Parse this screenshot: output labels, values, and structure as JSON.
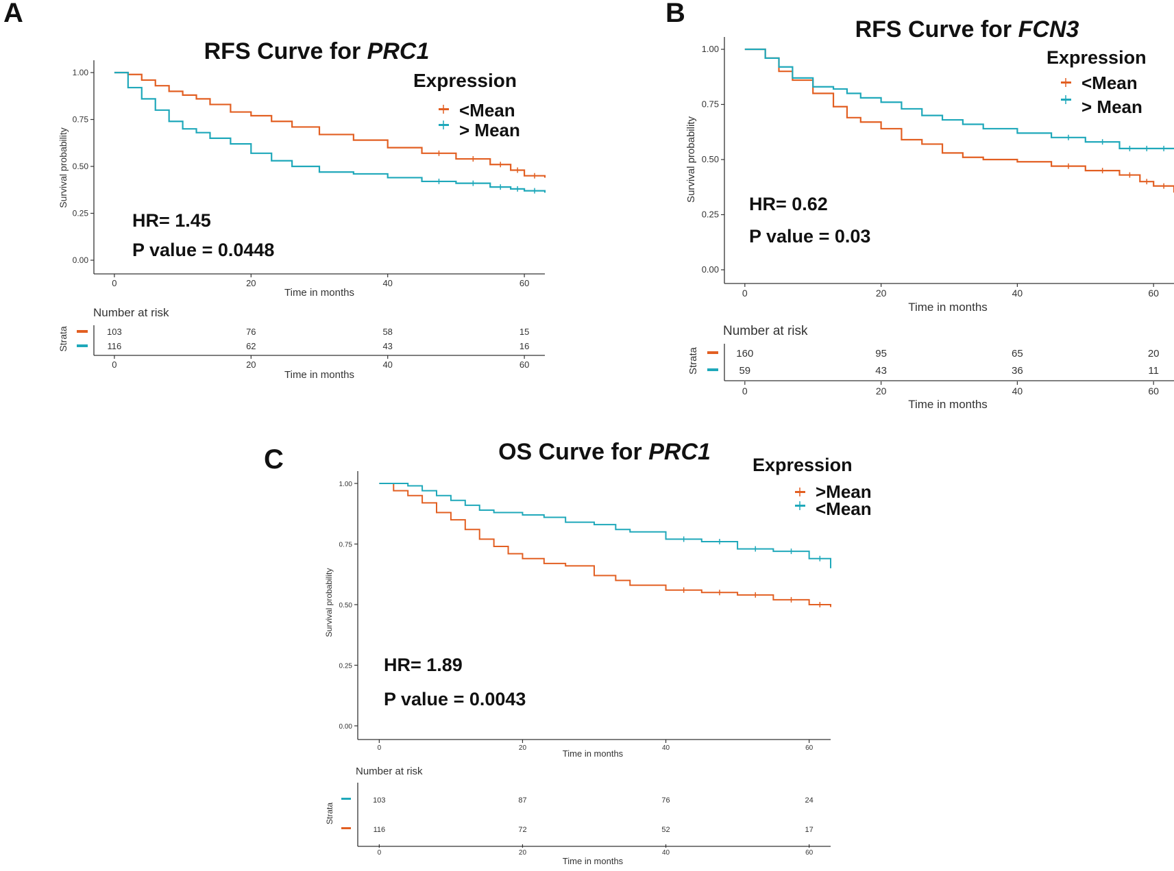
{
  "colors": {
    "orange": "#E25F22",
    "teal": "#1FA8BA",
    "axis": "#333333"
  },
  "chart_data": [
    {
      "type": "line",
      "panel_label": "A",
      "title_prefix": "RFS Curve for ",
      "title_gene": "PRC1",
      "xlabel": "Time in months",
      "ylabel": "Survival probability",
      "xlim": [
        -3,
        63
      ],
      "ylim": [
        0,
        1
      ],
      "x_ticks": [
        "0",
        "20",
        "40",
        "60"
      ],
      "y_ticks": [
        "0.00",
        "0.25",
        "0.50",
        "0.75",
        "1.00"
      ],
      "legend_title": "Expression",
      "hr_text": "HR= 1.45",
      "p_text": "P value = 0.0448",
      "risk_title": "Number at risk",
      "strata_label": "Strata",
      "series": [
        {
          "name": "<Mean",
          "legend_label": "<Mean",
          "color": "orange",
          "x": [
            0,
            2,
            4,
            6,
            8,
            10,
            12,
            14,
            17,
            20,
            23,
            26,
            30,
            35,
            40,
            45,
            50,
            55,
            58,
            60,
            63
          ],
          "y": [
            1.0,
            0.99,
            0.96,
            0.93,
            0.9,
            0.88,
            0.86,
            0.83,
            0.79,
            0.77,
            0.74,
            0.71,
            0.67,
            0.64,
            0.6,
            0.57,
            0.54,
            0.51,
            0.48,
            0.45,
            0.44
          ],
          "risk": [
            "103",
            "76",
            "58",
            "15"
          ]
        },
        {
          "name": "> Mean",
          "legend_label": "> Mean",
          "color": "teal",
          "x": [
            0,
            2,
            4,
            6,
            8,
            10,
            12,
            14,
            17,
            20,
            23,
            26,
            30,
            35,
            40,
            45,
            50,
            55,
            58,
            60,
            63
          ],
          "y": [
            1.0,
            0.92,
            0.86,
            0.8,
            0.74,
            0.7,
            0.68,
            0.65,
            0.62,
            0.57,
            0.53,
            0.5,
            0.47,
            0.46,
            0.44,
            0.42,
            0.41,
            0.39,
            0.38,
            0.37,
            0.36
          ],
          "risk": [
            "116",
            "62",
            "43",
            "16"
          ]
        }
      ]
    },
    {
      "type": "line",
      "panel_label": "B",
      "title_prefix": "RFS Curve for ",
      "title_gene": "FCN3",
      "xlabel": "Time in months",
      "ylabel": "Survival probability",
      "xlim": [
        -3,
        63
      ],
      "ylim": [
        0,
        1
      ],
      "x_ticks": [
        "0",
        "20",
        "40",
        "60"
      ],
      "y_ticks": [
        "0.00",
        "0.25",
        "0.50",
        "0.75",
        "1.00"
      ],
      "legend_title": "Expression",
      "hr_text": "HR= 0.62",
      "p_text": "P value = 0.03",
      "risk_title": "Number at risk",
      "strata_label": "Strata",
      "series": [
        {
          "name": "<Mean",
          "legend_label": "<Mean",
          "color": "orange",
          "x": [
            0,
            3,
            5,
            7,
            10,
            13,
            15,
            17,
            20,
            23,
            26,
            29,
            32,
            35,
            40,
            45,
            50,
            55,
            58,
            60,
            63
          ],
          "y": [
            1.0,
            0.96,
            0.9,
            0.86,
            0.8,
            0.74,
            0.69,
            0.67,
            0.64,
            0.59,
            0.57,
            0.53,
            0.51,
            0.5,
            0.49,
            0.47,
            0.45,
            0.43,
            0.4,
            0.38,
            0.35
          ],
          "risk": [
            "160",
            "95",
            "65",
            "20"
          ]
        },
        {
          "name": "> Mean",
          "legend_label": "> Mean",
          "color": "teal",
          "x": [
            0,
            3,
            5,
            7,
            10,
            13,
            15,
            17,
            20,
            23,
            26,
            29,
            32,
            35,
            40,
            45,
            50,
            55,
            58,
            60,
            63
          ],
          "y": [
            1.0,
            0.96,
            0.92,
            0.87,
            0.83,
            0.82,
            0.8,
            0.78,
            0.76,
            0.73,
            0.7,
            0.68,
            0.66,
            0.64,
            0.62,
            0.6,
            0.58,
            0.55,
            0.55,
            0.55,
            0.55
          ],
          "risk": [
            "59",
            "43",
            "36",
            "11"
          ]
        }
      ]
    },
    {
      "type": "line",
      "panel_label": "C",
      "title_prefix": "OS Curve for ",
      "title_gene": "PRC1",
      "xlabel": "Time in months",
      "ylabel": "Survival probability",
      "xlim": [
        -3,
        63
      ],
      "ylim": [
        0,
        1
      ],
      "x_ticks": [
        "0",
        "20",
        "40",
        "60"
      ],
      "y_ticks": [
        "0.00",
        "0.25",
        "0.50",
        "0.75",
        "1.00"
      ],
      "legend_title": "Expression",
      "hr_text": "HR= 1.89",
      "p_text": "P value = 0.0043",
      "risk_title": "Number at risk",
      "strata_label": "Strata",
      "series": [
        {
          "name": ">Mean",
          "legend_label": ">Mean",
          "color": "orange",
          "x": [
            0,
            2,
            4,
            6,
            8,
            10,
            12,
            14,
            16,
            18,
            20,
            23,
            26,
            30,
            33,
            35,
            40,
            45,
            50,
            55,
            60,
            63
          ],
          "y": [
            1.0,
            0.97,
            0.95,
            0.92,
            0.88,
            0.85,
            0.81,
            0.77,
            0.74,
            0.71,
            0.69,
            0.67,
            0.66,
            0.62,
            0.6,
            0.58,
            0.56,
            0.55,
            0.54,
            0.52,
            0.5,
            0.49
          ],
          "risk": [
            "116",
            "72",
            "52",
            "17"
          ]
        },
        {
          "name": "<Mean",
          "legend_label": "<Mean",
          "color": "teal",
          "x": [
            0,
            2,
            4,
            6,
            8,
            10,
            12,
            14,
            16,
            18,
            20,
            23,
            26,
            30,
            33,
            35,
            40,
            45,
            50,
            55,
            60,
            63
          ],
          "y": [
            1.0,
            1.0,
            0.99,
            0.97,
            0.95,
            0.93,
            0.91,
            0.89,
            0.88,
            0.88,
            0.87,
            0.86,
            0.84,
            0.83,
            0.81,
            0.8,
            0.77,
            0.76,
            0.73,
            0.72,
            0.69,
            0.65
          ],
          "risk": [
            "103",
            "87",
            "76",
            "24"
          ]
        }
      ]
    }
  ]
}
